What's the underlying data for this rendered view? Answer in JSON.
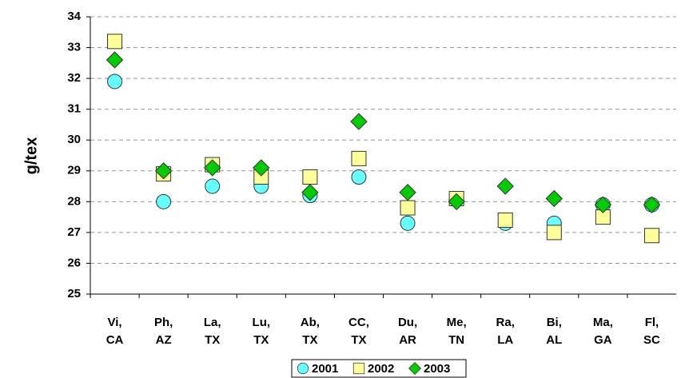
{
  "chart_data": {
    "type": "scatter",
    "y_label": "g/tex",
    "categories": [
      "Vi, CA",
      "Ph, AZ",
      "La, TX",
      "Lu, TX",
      "Ab, TX",
      "CC, TX",
      "Du, AR",
      "Me, TN",
      "Ra, LA",
      "Bi, AL",
      "Ma, GA",
      "Fl, SC"
    ],
    "series": [
      {
        "name": "2001",
        "color": "#66ffff",
        "marker": "circle",
        "values": [
          31.9,
          28.0,
          28.5,
          28.5,
          28.2,
          28.8,
          27.3,
          28.1,
          27.3,
          27.3,
          27.9,
          27.9
        ]
      },
      {
        "name": "2002",
        "color": "#ffff99",
        "marker": "square",
        "values": [
          33.2,
          28.9,
          29.2,
          28.8,
          28.8,
          29.4,
          27.8,
          28.1,
          27.4,
          27.0,
          27.5,
          26.9
        ]
      },
      {
        "name": "2003",
        "color": "#00cc00",
        "marker": "diamond",
        "values": [
          32.6,
          29.0,
          29.1,
          29.1,
          28.3,
          30.6,
          28.3,
          28.0,
          28.5,
          28.1,
          27.9,
          27.9
        ]
      }
    ],
    "ylim": [
      25,
      34
    ],
    "yticks": [
      25,
      26,
      27,
      28,
      29,
      30,
      31,
      32,
      33,
      34
    ],
    "grid": true,
    "legend": "bottom"
  }
}
